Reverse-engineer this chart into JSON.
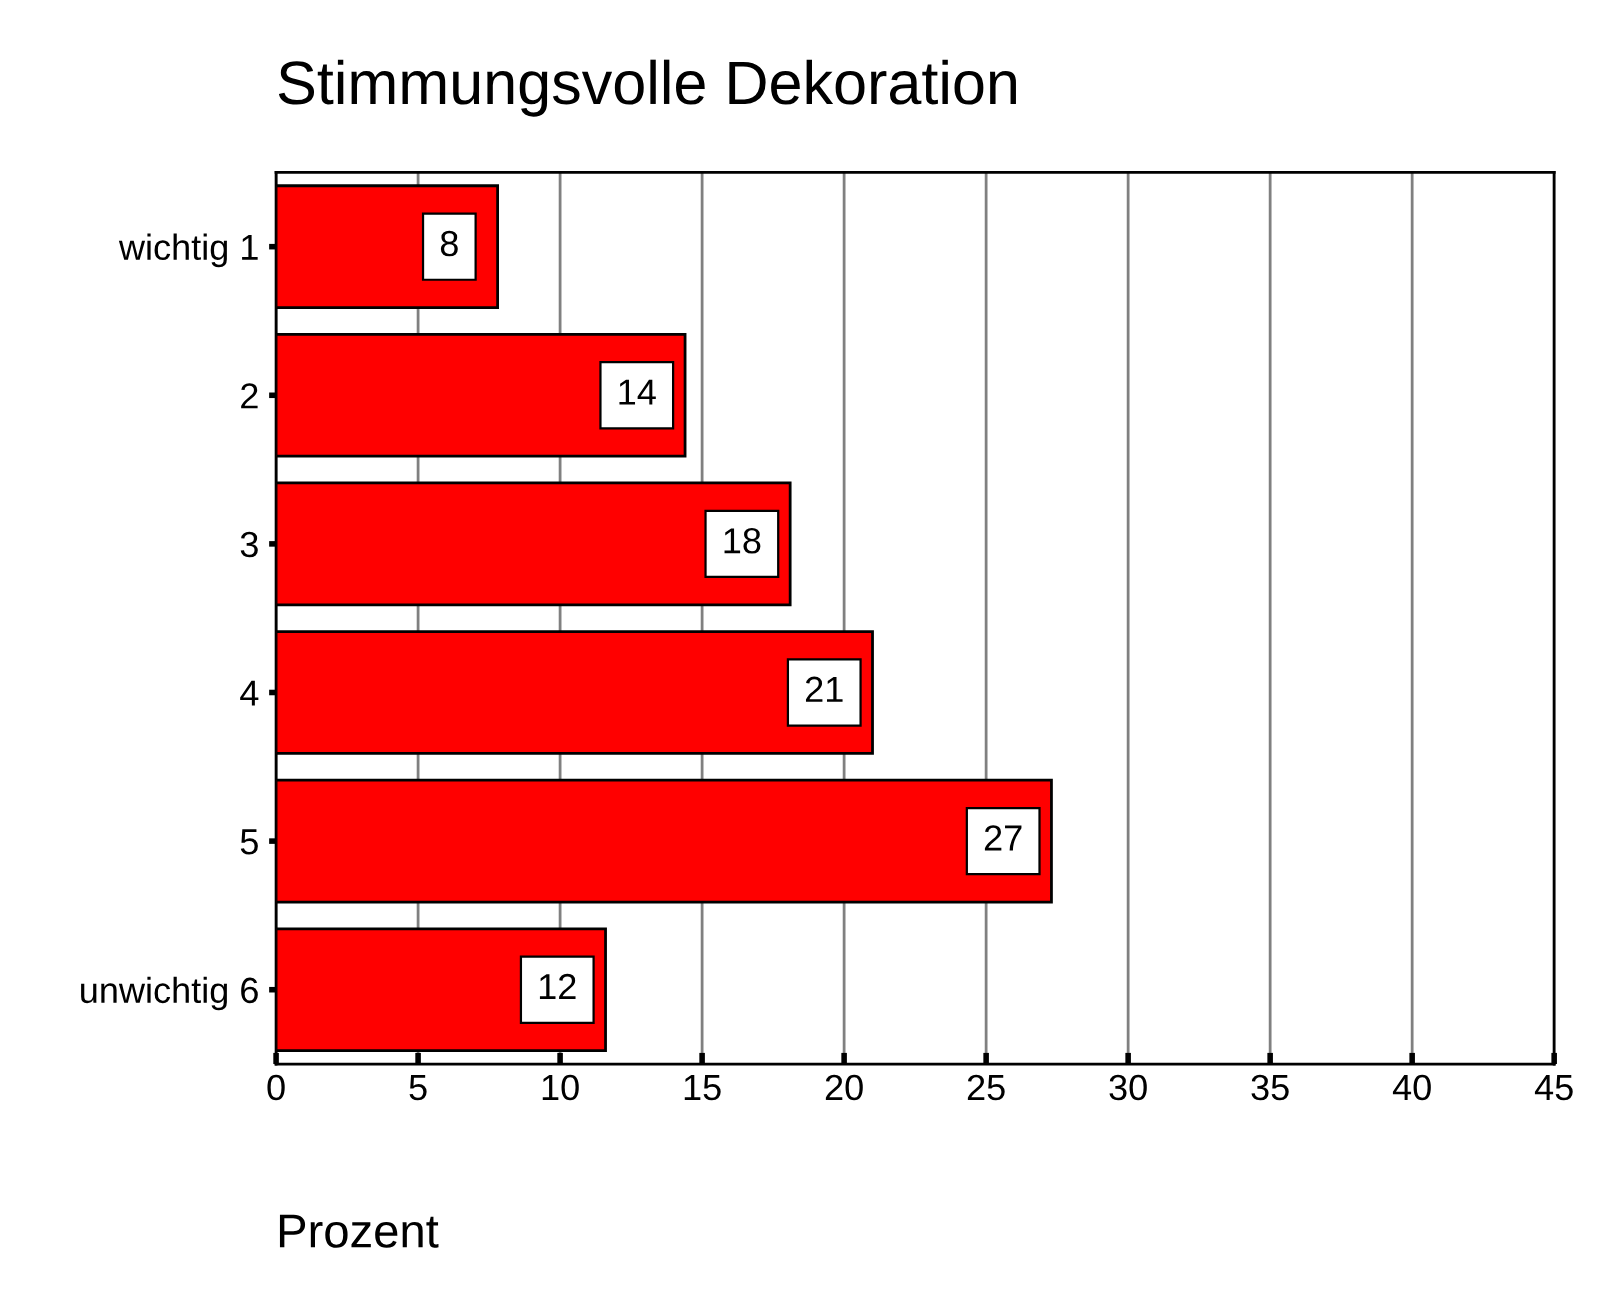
{
  "chart_data": {
    "type": "bar",
    "orientation": "horizontal",
    "title": "Stimmungsvolle Dekoration",
    "xlabel": "Prozent",
    "categories": [
      "wichtig 1",
      "2",
      "3",
      "4",
      "5",
      "unwichtig 6"
    ],
    "values": [
      7.8,
      14.4,
      18.1,
      21.0,
      27.3,
      11.6
    ],
    "value_labels": [
      "8",
      "14",
      "18",
      "21",
      "27",
      "12"
    ],
    "color": "#ff0000",
    "xlim": [
      0,
      45
    ],
    "xticks": [
      0,
      5,
      10,
      15,
      20,
      25,
      30,
      35,
      40,
      45
    ],
    "grid": "x",
    "legend": false
  }
}
